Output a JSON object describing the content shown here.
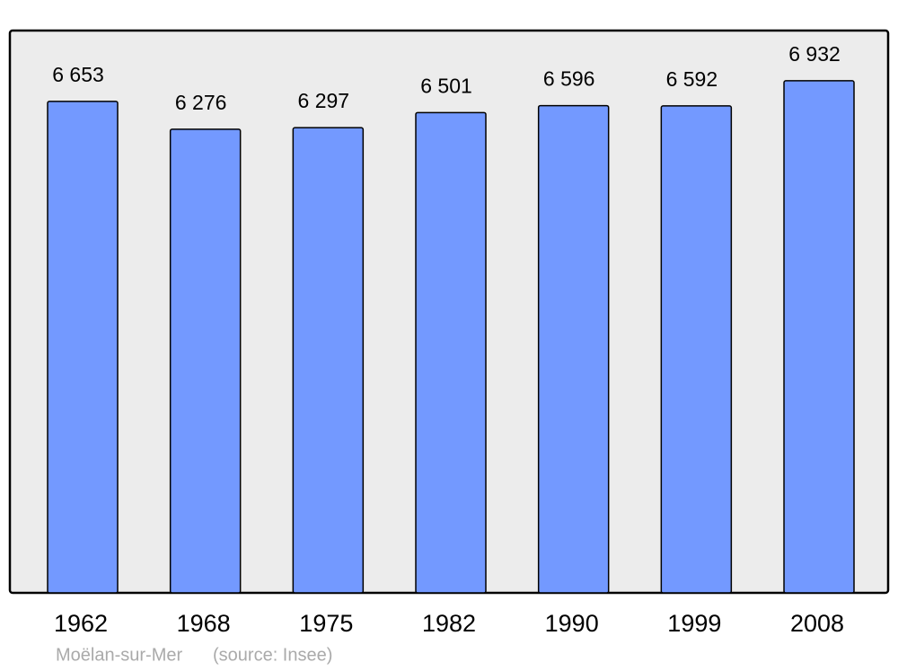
{
  "chart_data": {
    "type": "bar",
    "categories": [
      "1962",
      "1968",
      "1975",
      "1982",
      "1990",
      "1999",
      "2008"
    ],
    "values": [
      6653,
      6276,
      6297,
      6501,
      6596,
      6592,
      6932
    ],
    "value_labels": [
      "6 653",
      "6 276",
      "6 297",
      "6 501",
      "6 596",
      "6 592",
      "6 932"
    ],
    "color": "#7399ff",
    "background": "#ececec",
    "ylim": [
      0,
      7600
    ],
    "caption": "Moëlan-sur-Mer",
    "source": "(source: Insee)"
  }
}
